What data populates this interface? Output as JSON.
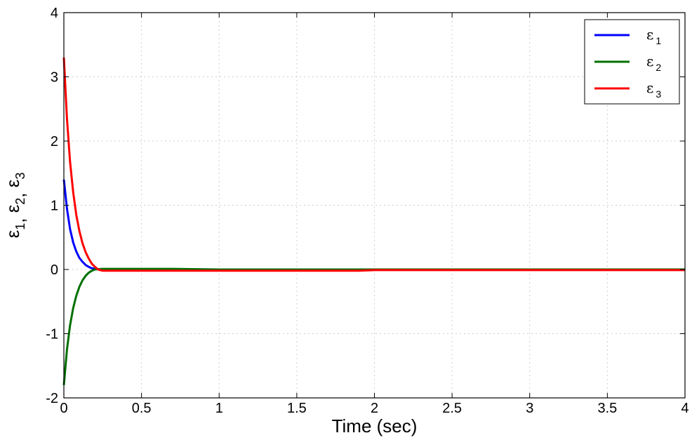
{
  "chart_data": {
    "type": "line",
    "xlabel": "Time (sec)",
    "ylabel": {
      "parts": [
        [
          "ε",
          "1"
        ],
        [
          "ε",
          "2"
        ],
        [
          "ε",
          "3"
        ]
      ],
      "separator": ", "
    },
    "xlim": [
      0,
      4
    ],
    "ylim": [
      -2,
      4
    ],
    "xticks": [
      0,
      0.5,
      1,
      1.5,
      2,
      2.5,
      3,
      3.5,
      4
    ],
    "yticks": [
      -2,
      -1,
      0,
      1,
      2,
      3,
      4
    ],
    "grid": true,
    "legend_position": "top-right",
    "series": [
      {
        "name": "ε1",
        "symbol": "ε",
        "subscript": "1",
        "color": "#0000ff",
        "x": [
          0,
          0.02,
          0.04,
          0.06,
          0.08,
          0.1,
          0.12,
          0.14,
          0.16,
          0.18,
          0.2,
          0.25,
          0.3,
          0.5,
          1,
          2,
          3,
          4
        ],
        "y": [
          1.4,
          0.95,
          0.63,
          0.42,
          0.28,
          0.18,
          0.12,
          0.07,
          0.04,
          0.02,
          0.01,
          0.0,
          0.0,
          0.0,
          0.0,
          0.0,
          0.0,
          0.0
        ]
      },
      {
        "name": "ε2",
        "symbol": "ε",
        "subscript": "2",
        "color": "#007000",
        "x": [
          0,
          0.02,
          0.04,
          0.06,
          0.08,
          0.1,
          0.12,
          0.14,
          0.16,
          0.18,
          0.2,
          0.25,
          0.3,
          0.5,
          0.7,
          1,
          2,
          3,
          4
        ],
        "y": [
          -1.8,
          -1.25,
          -0.87,
          -0.6,
          -0.41,
          -0.27,
          -0.17,
          -0.1,
          -0.05,
          -0.02,
          0.0,
          0.01,
          0.01,
          0.01,
          0.01,
          0.0,
          0.0,
          0.0,
          0.0
        ]
      },
      {
        "name": "ε3",
        "symbol": "ε",
        "subscript": "3",
        "color": "#ff0000",
        "x": [
          0,
          0.02,
          0.04,
          0.06,
          0.08,
          0.1,
          0.12,
          0.14,
          0.16,
          0.18,
          0.2,
          0.22,
          0.25,
          0.3,
          0.5,
          1,
          1.9,
          2,
          3,
          4
        ],
        "y": [
          3.3,
          2.35,
          1.68,
          1.2,
          0.85,
          0.6,
          0.41,
          0.27,
          0.17,
          0.09,
          0.04,
          0.0,
          -0.02,
          -0.02,
          -0.02,
          -0.02,
          -0.02,
          -0.01,
          -0.01,
          -0.01
        ]
      }
    ]
  }
}
